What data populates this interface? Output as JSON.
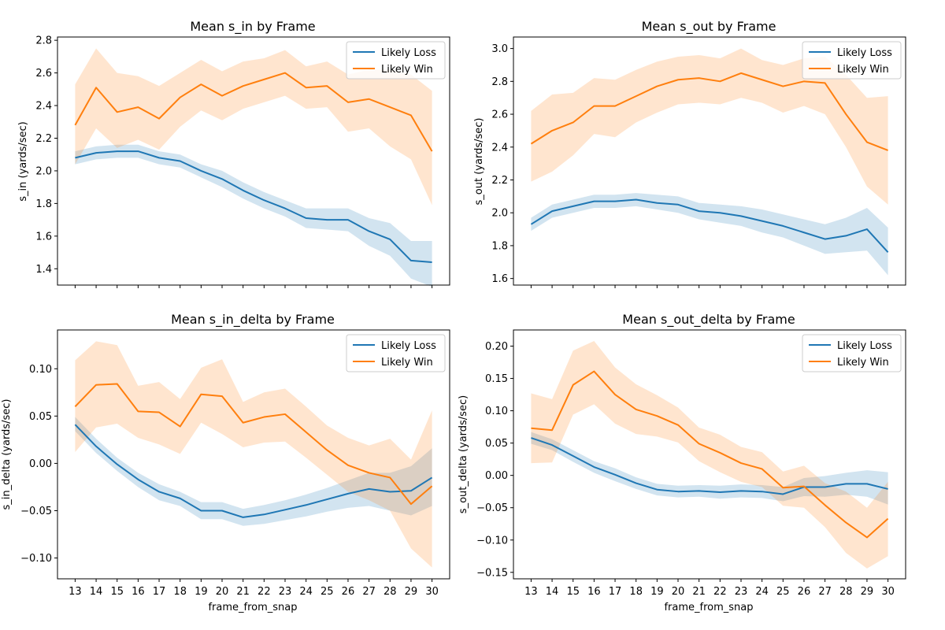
{
  "colors": {
    "loss": "#1f77b4",
    "win": "#ff7f0e"
  },
  "chart_data": [
    {
      "type": "line",
      "title": "Mean s_in by Frame",
      "xlabel": "",
      "ylabel": "s_in (yards/sec)",
      "x": [
        13,
        14,
        15,
        16,
        17,
        18,
        19,
        20,
        21,
        22,
        23,
        24,
        25,
        26,
        27,
        28,
        29,
        30
      ],
      "x_ticks": [
        "13",
        "14",
        "15",
        "16",
        "17",
        "18",
        "19",
        "20",
        "21",
        "22",
        "23",
        "24",
        "25",
        "26",
        "27",
        "28",
        "29",
        "30"
      ],
      "show_x_tick_labels": false,
      "ylim": [
        1.3,
        2.82
      ],
      "y_ticks": [
        1.4,
        1.6,
        1.8,
        2.0,
        2.2,
        2.4,
        2.6,
        2.8
      ],
      "y_tick_labels": [
        "1.4",
        "1.6",
        "1.8",
        "2.0",
        "2.2",
        "2.4",
        "2.6",
        "2.8"
      ],
      "legend": "top-right",
      "series": [
        {
          "name": "Likely Loss",
          "color": "#1f77b4",
          "values": [
            2.08,
            2.11,
            2.12,
            2.12,
            2.08,
            2.06,
            2.0,
            1.95,
            1.88,
            1.82,
            1.77,
            1.71,
            1.7,
            1.7,
            1.63,
            1.58,
            1.45,
            1.44
          ],
          "lower": [
            2.04,
            2.07,
            2.08,
            2.08,
            2.04,
            2.02,
            1.96,
            1.9,
            1.83,
            1.77,
            1.72,
            1.65,
            1.64,
            1.63,
            1.54,
            1.48,
            1.34,
            1.29
          ],
          "upper": [
            2.12,
            2.15,
            2.16,
            2.16,
            2.12,
            2.1,
            2.04,
            2.0,
            1.93,
            1.87,
            1.82,
            1.77,
            1.77,
            1.77,
            1.71,
            1.68,
            1.57,
            1.57
          ]
        },
        {
          "name": "Likely Win",
          "color": "#ff7f0e",
          "values": [
            2.28,
            2.51,
            2.36,
            2.39,
            2.32,
            2.45,
            2.53,
            2.46,
            2.52,
            2.56,
            2.6,
            2.51,
            2.52,
            2.42,
            2.44,
            2.39,
            2.34,
            2.12
          ],
          "lower": [
            2.04,
            2.26,
            2.14,
            2.19,
            2.13,
            2.27,
            2.37,
            2.31,
            2.38,
            2.42,
            2.46,
            2.38,
            2.39,
            2.24,
            2.26,
            2.15,
            2.07,
            1.79
          ],
          "upper": [
            2.53,
            2.75,
            2.6,
            2.58,
            2.52,
            2.6,
            2.68,
            2.61,
            2.67,
            2.69,
            2.74,
            2.64,
            2.67,
            2.59,
            2.62,
            2.62,
            2.59,
            2.49
          ]
        }
      ]
    },
    {
      "type": "line",
      "title": "Mean s_out by Frame",
      "xlabel": "",
      "ylabel": "s_out (yards/sec)",
      "x": [
        13,
        14,
        15,
        16,
        17,
        18,
        19,
        20,
        21,
        22,
        23,
        24,
        25,
        26,
        27,
        28,
        29,
        30
      ],
      "x_ticks": [
        "13",
        "14",
        "15",
        "16",
        "17",
        "18",
        "19",
        "20",
        "21",
        "22",
        "23",
        "24",
        "25",
        "26",
        "27",
        "28",
        "29",
        "30"
      ],
      "show_x_tick_labels": false,
      "ylim": [
        1.56,
        3.07
      ],
      "y_ticks": [
        1.6,
        1.8,
        2.0,
        2.2,
        2.4,
        2.6,
        2.8,
        3.0
      ],
      "y_tick_labels": [
        "1.6",
        "1.8",
        "2.0",
        "2.2",
        "2.4",
        "2.6",
        "2.8",
        "3.0"
      ],
      "legend": "top-right",
      "series": [
        {
          "name": "Likely Loss",
          "color": "#1f77b4",
          "values": [
            1.93,
            2.01,
            2.04,
            2.07,
            2.07,
            2.08,
            2.06,
            2.05,
            2.01,
            2.0,
            1.98,
            1.95,
            1.92,
            1.88,
            1.84,
            1.86,
            1.9,
            1.76
          ],
          "lower": [
            1.89,
            1.97,
            2.0,
            2.03,
            2.03,
            2.04,
            2.02,
            2.0,
            1.96,
            1.94,
            1.92,
            1.88,
            1.85,
            1.8,
            1.75,
            1.76,
            1.77,
            1.62
          ],
          "upper": [
            1.97,
            2.05,
            2.08,
            2.11,
            2.11,
            2.12,
            2.11,
            2.1,
            2.06,
            2.05,
            2.04,
            2.02,
            1.99,
            1.96,
            1.93,
            1.97,
            2.03,
            1.91
          ]
        },
        {
          "name": "Likely Win",
          "color": "#ff7f0e",
          "values": [
            2.42,
            2.5,
            2.55,
            2.65,
            2.65,
            2.71,
            2.77,
            2.81,
            2.82,
            2.8,
            2.85,
            2.81,
            2.77,
            2.8,
            2.79,
            2.6,
            2.43,
            2.38
          ],
          "lower": [
            2.19,
            2.25,
            2.35,
            2.48,
            2.46,
            2.55,
            2.61,
            2.66,
            2.67,
            2.66,
            2.7,
            2.67,
            2.61,
            2.65,
            2.6,
            2.4,
            2.16,
            2.05
          ],
          "upper": [
            2.62,
            2.72,
            2.73,
            2.82,
            2.81,
            2.87,
            2.92,
            2.95,
            2.96,
            2.94,
            3.0,
            2.93,
            2.9,
            2.94,
            2.95,
            2.84,
            2.7,
            2.71
          ]
        }
      ]
    },
    {
      "type": "line",
      "title": "Mean s_in_delta by Frame",
      "xlabel": "frame_from_snap",
      "ylabel": "s_in_delta (yards/sec)",
      "x": [
        13,
        14,
        15,
        16,
        17,
        18,
        19,
        20,
        21,
        22,
        23,
        24,
        25,
        26,
        27,
        28,
        29,
        30
      ],
      "x_ticks": [
        "13",
        "14",
        "15",
        "16",
        "17",
        "18",
        "19",
        "20",
        "21",
        "22",
        "23",
        "24",
        "25",
        "26",
        "27",
        "28",
        "29",
        "30"
      ],
      "show_x_tick_labels": true,
      "ylim": [
        -0.122,
        0.141
      ],
      "y_ticks": [
        -0.1,
        -0.05,
        0.0,
        0.05,
        0.1
      ],
      "y_tick_labels": [
        "−0.10",
        "−0.05",
        "0.00",
        "0.05",
        "0.10"
      ],
      "legend": "top-right",
      "series": [
        {
          "name": "Likely Loss",
          "color": "#1f77b4",
          "values": [
            0.041,
            0.018,
            -0.001,
            -0.017,
            -0.03,
            -0.037,
            -0.05,
            -0.05,
            -0.057,
            -0.054,
            -0.049,
            -0.044,
            -0.038,
            -0.032,
            -0.027,
            -0.03,
            -0.029,
            -0.015
          ],
          "lower": [
            0.034,
            0.011,
            -0.008,
            -0.025,
            -0.039,
            -0.045,
            -0.059,
            -0.059,
            -0.066,
            -0.064,
            -0.06,
            -0.056,
            -0.051,
            -0.047,
            -0.045,
            -0.05,
            -0.055,
            -0.045
          ],
          "upper": [
            0.049,
            0.026,
            0.006,
            -0.01,
            -0.022,
            -0.03,
            -0.041,
            -0.041,
            -0.048,
            -0.044,
            -0.039,
            -0.033,
            -0.026,
            -0.018,
            -0.01,
            -0.01,
            -0.003,
            0.016
          ]
        },
        {
          "name": "Likely Win",
          "color": "#ff7f0e",
          "values": [
            0.06,
            0.083,
            0.084,
            0.055,
            0.054,
            0.039,
            0.073,
            0.071,
            0.043,
            0.049,
            0.052,
            0.033,
            0.014,
            -0.002,
            -0.01,
            -0.015,
            -0.043,
            -0.024
          ],
          "lower": [
            0.012,
            0.038,
            0.042,
            0.027,
            0.02,
            0.01,
            0.043,
            0.031,
            0.017,
            0.022,
            0.023,
            0.006,
            -0.012,
            -0.03,
            -0.039,
            -0.05,
            -0.09,
            -0.11
          ],
          "upper": [
            0.109,
            0.129,
            0.125,
            0.082,
            0.086,
            0.068,
            0.101,
            0.11,
            0.065,
            0.075,
            0.079,
            0.06,
            0.04,
            0.027,
            0.019,
            0.026,
            0.004,
            0.056
          ]
        }
      ]
    },
    {
      "type": "line",
      "title": "Mean s_out_delta by Frame",
      "xlabel": "frame_from_snap",
      "ylabel": "s_out_delta (yards/sec)",
      "x": [
        13,
        14,
        15,
        16,
        17,
        18,
        19,
        20,
        21,
        22,
        23,
        24,
        25,
        26,
        27,
        28,
        29,
        30
      ],
      "x_ticks": [
        "13",
        "14",
        "15",
        "16",
        "17",
        "18",
        "19",
        "20",
        "21",
        "22",
        "23",
        "24",
        "25",
        "26",
        "27",
        "28",
        "29",
        "30"
      ],
      "show_x_tick_labels": true,
      "ylim": [
        -0.16,
        0.225
      ],
      "y_ticks": [
        -0.15,
        -0.1,
        -0.05,
        0.0,
        0.05,
        0.1,
        0.15,
        0.2
      ],
      "y_tick_labels": [
        "−0.15",
        "−0.10",
        "−0.05",
        "0.00",
        "0.05",
        "0.10",
        "0.15",
        "0.20"
      ],
      "legend": "top-right",
      "series": [
        {
          "name": "Likely Loss",
          "color": "#1f77b4",
          "values": [
            0.058,
            0.047,
            0.03,
            0.013,
            0.001,
            -0.012,
            -0.022,
            -0.025,
            -0.024,
            -0.026,
            -0.024,
            -0.025,
            -0.029,
            -0.018,
            -0.018,
            -0.013,
            -0.013,
            -0.021
          ],
          "lower": [
            0.049,
            0.039,
            0.021,
            0.004,
            -0.009,
            -0.021,
            -0.031,
            -0.034,
            -0.033,
            -0.036,
            -0.034,
            -0.035,
            -0.04,
            -0.032,
            -0.033,
            -0.03,
            -0.033,
            -0.045
          ],
          "upper": [
            0.067,
            0.056,
            0.039,
            0.022,
            0.011,
            -0.003,
            -0.013,
            -0.016,
            -0.015,
            -0.016,
            -0.014,
            -0.015,
            -0.018,
            -0.004,
            -0.001,
            0.004,
            0.008,
            0.005
          ]
        },
        {
          "name": "Likely Win",
          "color": "#ff7f0e",
          "values": [
            0.073,
            0.07,
            0.14,
            0.161,
            0.125,
            0.102,
            0.092,
            0.078,
            0.049,
            0.035,
            0.019,
            0.01,
            -0.019,
            -0.017,
            -0.046,
            -0.073,
            -0.096,
            -0.067
          ],
          "lower": [
            0.019,
            0.02,
            0.094,
            0.11,
            0.08,
            0.064,
            0.06,
            0.051,
            0.022,
            0.005,
            -0.01,
            -0.018,
            -0.047,
            -0.05,
            -0.08,
            -0.12,
            -0.144,
            -0.125
          ],
          "upper": [
            0.127,
            0.118,
            0.193,
            0.208,
            0.167,
            0.141,
            0.124,
            0.105,
            0.074,
            0.063,
            0.044,
            0.036,
            0.006,
            0.015,
            -0.012,
            -0.025,
            -0.05,
            -0.01
          ]
        }
      ]
    }
  ]
}
